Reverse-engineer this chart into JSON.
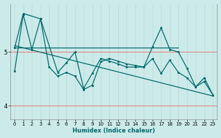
{
  "xlabel": "Humidex (Indice chaleur)",
  "background_color": "#cceaea",
  "grid_color_x": "#b8d8d8",
  "grid_color_y": "#ee6666",
  "line_color": "#006868",
  "xlim": [
    -0.5,
    23.5
  ],
  "ylim": [
    3.75,
    5.9
  ],
  "yticks": [
    4,
    5
  ],
  "xticks": [
    0,
    1,
    2,
    3,
    4,
    5,
    6,
    7,
    8,
    9,
    10,
    11,
    12,
    13,
    14,
    15,
    16,
    17,
    18,
    19,
    20,
    21,
    22,
    23
  ],
  "line1_x": [
    0,
    1,
    2,
    3,
    4,
    5,
    6,
    7,
    8,
    9,
    10,
    11,
    12,
    13,
    14,
    15,
    16,
    17,
    18,
    19,
    20,
    21,
    22,
    23
  ],
  "line1_y": [
    4.65,
    5.7,
    5.05,
    5.62,
    4.72,
    4.55,
    4.62,
    4.55,
    4.3,
    4.38,
    4.82,
    4.88,
    4.83,
    4.78,
    4.75,
    4.72,
    4.88,
    4.6,
    4.85,
    4.62,
    4.52,
    4.35,
    4.52,
    4.2
  ],
  "line2_x": [
    0,
    1,
    3,
    5,
    6,
    7,
    8,
    9,
    10,
    11,
    12,
    13,
    14,
    15,
    16,
    17,
    18,
    19,
    20,
    21,
    22,
    23
  ],
  "line2_y": [
    5.08,
    5.72,
    5.62,
    4.62,
    4.8,
    5.0,
    4.32,
    4.6,
    4.88,
    4.83,
    4.78,
    4.72,
    4.72,
    4.72,
    5.1,
    5.45,
    5.05,
    5.0,
    4.7,
    4.35,
    4.45,
    4.2
  ],
  "line3_x": [
    0,
    23
  ],
  "line3_y": [
    5.12,
    4.18
  ],
  "line4_x": [
    0,
    19
  ],
  "line4_y": [
    5.08,
    5.08
  ]
}
